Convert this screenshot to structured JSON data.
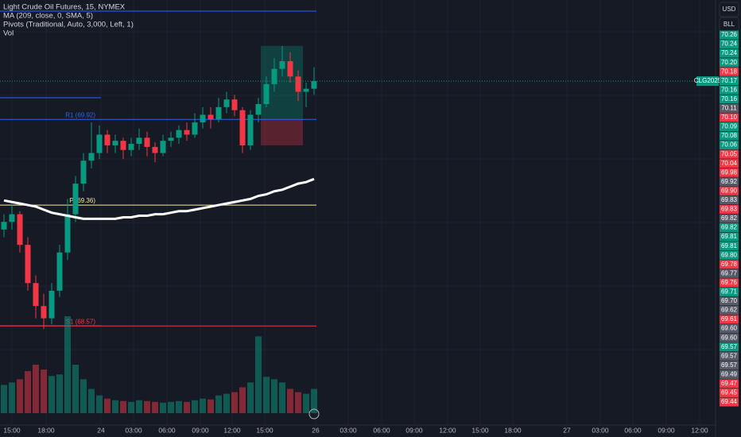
{
  "legend": [
    "Light Crude Oil Futures, 15, NYMEX",
    "MA (209, close, 0, SMA, 5)",
    "Pivots (Traditional, Auto, 3,000, Left, 1)",
    "Vol"
  ],
  "buttons": [
    "USD",
    "BLL"
  ],
  "ticker_label": "CLG2025",
  "price_scale": {
    "ylim": [
      68,
      70.7
    ]
  },
  "current_price": 70.17,
  "pivots": [
    {
      "label": "R1 (69.92)",
      "value": 69.92,
      "color": "#2962ff"
    },
    {
      "label": "P (69.36)",
      "value": 69.36,
      "color": "#f5e99a"
    },
    {
      "label": "S1 (68.57)",
      "value": 68.57,
      "color": "#f23645"
    }
  ],
  "position": {
    "entry": 69.92,
    "target": 70.4,
    "stop": 69.75
  },
  "candles": [
    [
      69.2,
      69.3,
      69.15,
      69.25
    ],
    [
      69.25,
      69.36,
      69.2,
      69.3
    ],
    [
      69.3,
      69.32,
      69.05,
      69.1
    ],
    [
      69.1,
      69.15,
      68.8,
      68.85
    ],
    [
      68.85,
      68.9,
      68.62,
      68.7
    ],
    [
      68.7,
      68.78,
      68.55,
      68.62
    ],
    [
      68.62,
      68.85,
      68.58,
      68.8
    ],
    [
      68.8,
      69.1,
      68.76,
      69.05
    ],
    [
      69.05,
      69.4,
      69,
      69.3
    ],
    [
      69.3,
      69.55,
      69.25,
      69.5
    ],
    [
      69.5,
      69.7,
      69.45,
      69.65
    ],
    [
      69.65,
      69.9,
      69.6,
      69.7
    ],
    [
      69.7,
      69.88,
      69.66,
      69.82
    ],
    [
      69.82,
      69.85,
      69.7,
      69.75
    ],
    [
      69.75,
      69.82,
      69.7,
      69.78
    ],
    [
      69.78,
      69.8,
      69.66,
      69.72
    ],
    [
      69.72,
      69.8,
      69.68,
      69.76
    ],
    [
      69.76,
      69.86,
      69.72,
      69.8
    ],
    [
      69.8,
      69.84,
      69.68,
      69.74
    ],
    [
      69.74,
      69.77,
      69.64,
      69.7
    ],
    [
      69.7,
      69.82,
      69.68,
      69.78
    ],
    [
      69.78,
      69.84,
      69.74,
      69.8
    ],
    [
      69.8,
      69.88,
      69.76,
      69.85
    ],
    [
      69.85,
      69.9,
      69.78,
      69.82
    ],
    [
      69.82,
      69.96,
      69.8,
      69.9
    ],
    [
      69.9,
      70,
      69.86,
      69.95
    ],
    [
      69.95,
      70,
      69.86,
      69.92
    ],
    [
      69.92,
      70.06,
      69.9,
      70
    ],
    [
      70,
      70.1,
      69.96,
      70.05
    ],
    [
      70.05,
      70.08,
      69.94,
      69.98
    ],
    [
      69.98,
      70,
      69.7,
      69.75
    ],
    [
      69.75,
      69.98,
      69.72,
      69.95
    ],
    [
      69.95,
      70.06,
      69.9,
      70.02
    ],
    [
      70.02,
      70.2,
      70,
      70.15
    ],
    [
      70.15,
      70.32,
      70.1,
      70.25
    ],
    [
      70.25,
      70.4,
      70.2,
      70.3
    ],
    [
      70.3,
      70.36,
      70.16,
      70.2
    ],
    [
      70.2,
      70.24,
      70.04,
      70.1
    ],
    [
      70.1,
      70.16,
      70,
      70.12
    ],
    [
      70.12,
      70.26,
      70.08,
      70.17
    ]
  ],
  "ma": [
    69.39,
    69.38,
    69.37,
    69.36,
    69.35,
    69.33,
    69.31,
    69.3,
    69.29,
    69.28,
    69.27,
    69.27,
    69.27,
    69.27,
    69.27,
    69.28,
    69.28,
    69.29,
    69.29,
    69.3,
    69.3,
    69.31,
    69.32,
    69.32,
    69.33,
    69.34,
    69.35,
    69.36,
    69.37,
    69.38,
    69.39,
    69.4,
    69.42,
    69.43,
    69.45,
    69.46,
    69.48,
    69.5,
    69.51,
    69.53
  ],
  "volume": {
    "ylim": [
      0,
      12000
    ],
    "values": [
      3500,
      3800,
      4200,
      5200,
      6000,
      5400,
      4600,
      4800,
      12000,
      6000,
      4200,
      3000,
      2200,
      1800,
      1600,
      1500,
      1400,
      1600,
      1500,
      1400,
      1300,
      1400,
      1500,
      1400,
      1600,
      1800,
      1700,
      2200,
      2400,
      2600,
      3200,
      3800,
      9500,
      4500,
      4200,
      3800,
      3000,
      2600,
      2400,
      3000
    ]
  },
  "price_labels": [
    {
      "text": "70.26",
      "color": "#089981"
    },
    {
      "text": "70.24",
      "color": "#089981"
    },
    {
      "text": "70.24",
      "color": "#089981"
    },
    {
      "text": "70.20",
      "color": "#089981"
    },
    {
      "text": "70.18",
      "color": "#f23645"
    },
    {
      "text": "70.17",
      "color": "#089981"
    },
    {
      "text": "70.16",
      "color": "#089981"
    },
    {
      "text": "70.16",
      "color": "#089981"
    },
    {
      "text": "70.11",
      "color": "#555a66"
    },
    {
      "text": "70.10",
      "color": "#f23645"
    },
    {
      "text": "70.09",
      "color": "#089981"
    },
    {
      "text": "70.08",
      "color": "#089981"
    },
    {
      "text": "70.06",
      "color": "#089981"
    },
    {
      "text": "70.05",
      "color": "#f23645"
    },
    {
      "text": "70.04",
      "color": "#f23645"
    },
    {
      "text": "69.98",
      "color": "#f23645"
    },
    {
      "text": "69.92",
      "color": "#555a66"
    },
    {
      "text": "69.90",
      "color": "#f23645"
    },
    {
      "text": "69.83",
      "color": "#555a66"
    },
    {
      "text": "69.83",
      "color": "#f23645"
    },
    {
      "text": "69.82",
      "color": "#555a66"
    },
    {
      "text": "69.82",
      "color": "#089981"
    },
    {
      "text": "69.81",
      "color": "#089981"
    },
    {
      "text": "69.81",
      "color": "#089981"
    },
    {
      "text": "69.80",
      "color": "#089981"
    },
    {
      "text": "69.78",
      "color": "#f23645"
    },
    {
      "text": "69.77",
      "color": "#555a66"
    },
    {
      "text": "69.76",
      "color": "#f23645"
    },
    {
      "text": "69.71",
      "color": "#089981"
    },
    {
      "text": "69.70",
      "color": "#555a66"
    },
    {
      "text": "69.62",
      "color": "#555a66"
    },
    {
      "text": "69.61",
      "color": "#f23645"
    },
    {
      "text": "69.60",
      "color": "#555a66"
    },
    {
      "text": "69.60",
      "color": "#555a66"
    },
    {
      "text": "69.57",
      "color": "#089981"
    },
    {
      "text": "69.57",
      "color": "#555a66"
    },
    {
      "text": "69.57",
      "color": "#555a66"
    },
    {
      "text": "69.49",
      "color": "#555a66"
    },
    {
      "text": "69.47",
      "color": "#f23645"
    },
    {
      "text": "69.45",
      "color": "#f23645"
    },
    {
      "text": "69.44",
      "color": "#f23645"
    }
  ],
  "time_labels": [
    "15:00",
    "18:00",
    "24",
    "03:00",
    "06:00",
    "09:00",
    "12:00",
    "15:00",
    "26",
    "03:00",
    "06:00",
    "09:00",
    "12:00",
    "15:00",
    "18:00",
    "27",
    "03:00",
    "06:00",
    "09:00",
    "12:00"
  ]
}
